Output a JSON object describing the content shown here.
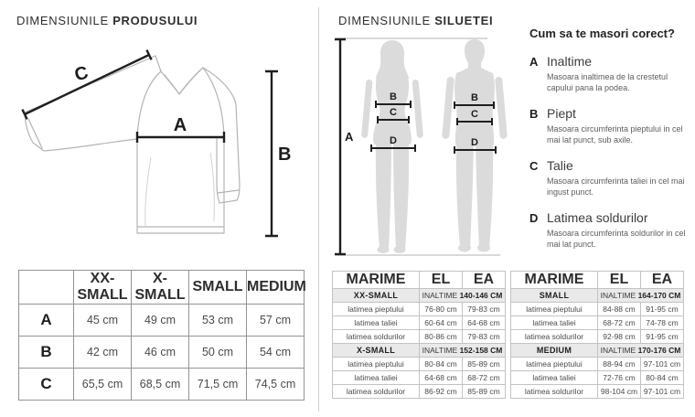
{
  "left": {
    "title_regular": "DIMENSIUNILE",
    "title_bold": "PRODUSULUI",
    "diagram": {
      "letters": {
        "a": "A",
        "b": "B",
        "c": "C"
      }
    },
    "table": {
      "headers": [
        "",
        "XX-SMALL",
        "X-SMALL",
        "SMALL",
        "MEDIUM"
      ],
      "rows": [
        {
          "label": "A",
          "values": [
            "45 cm",
            "49 cm",
            "53 cm",
            "57 cm"
          ]
        },
        {
          "label": "B",
          "values": [
            "42 cm",
            "46 cm",
            "50 cm",
            "54 cm"
          ]
        },
        {
          "label": "C",
          "values": [
            "65,5 cm",
            "68,5 cm",
            "71,5 cm",
            "74,5 cm"
          ]
        }
      ]
    }
  },
  "right": {
    "title_regular": "DIMENSIUNILE",
    "title_bold": "SILUETEI",
    "diagram": {
      "letters": {
        "a": "A",
        "b": "B",
        "c": "C",
        "d": "D"
      }
    },
    "howto": {
      "heading": "Cum sa te masori corect?",
      "items": [
        {
          "letter": "A",
          "term": "Inaltime",
          "desc": "Masoara inaltimea de la crestetul capului pana la podea."
        },
        {
          "letter": "B",
          "term": "Piept",
          "desc": "Masoara circumferinta pieptului in cel mai lat punct, sub axile."
        },
        {
          "letter": "C",
          "term": "Talie",
          "desc": "Masoara circumferinta taliei in cel mai ingust punct."
        },
        {
          "letter": "D",
          "term": "Latimea soldurilor",
          "desc": "Masoara circumferinta soldurilor in cel mai lat punct."
        }
      ]
    },
    "size_tables": [
      {
        "headers": [
          "MARIME",
          "EL",
          "EA"
        ],
        "groups": [
          {
            "size": "XX-SMALL",
            "height_label": "INALTIME",
            "height_range": "140-146 CM",
            "rows": [
              [
                "latimea pieptului",
                "76-80 cm",
                "79-83 cm"
              ],
              [
                "latimea taliei",
                "60-64 cm",
                "64-68 cm"
              ],
              [
                "latimea soldurilor",
                "80-86 cm",
                "79-83 cm"
              ]
            ]
          },
          {
            "size": "X-SMALL",
            "height_label": "INALTIME",
            "height_range": "152-158 CM",
            "rows": [
              [
                "latimea pieptului",
                "80-84 cm",
                "85-89 cm"
              ],
              [
                "latimea taliei",
                "64-68 cm",
                "68-72 cm"
              ],
              [
                "latimea soldurilor",
                "86-92 cm",
                "85-89 cm"
              ]
            ]
          }
        ]
      },
      {
        "headers": [
          "MARIME",
          "EL",
          "EA"
        ],
        "groups": [
          {
            "size": "SMALL",
            "height_label": "INALTIME",
            "height_range": "164-170 CM",
            "rows": [
              [
                "latimea pieptului",
                "84-88 cm",
                "91-95 cm"
              ],
              [
                "latimea taliei",
                "68-72 cm",
                "74-78 cm"
              ],
              [
                "latimea soldurilor",
                "92-98 cm",
                "91-95 cm"
              ]
            ]
          },
          {
            "size": "MEDIUM",
            "height_label": "INALTIME",
            "height_range": "170-176 CM",
            "rows": [
              [
                "latimea pieptului",
                "88-94 cm",
                "97-101 cm"
              ],
              [
                "latimea taliei",
                "72-76 cm",
                "80-84 cm"
              ],
              [
                "latimea soldurilor",
                "98-104 cm",
                "97-101 cm"
              ]
            ]
          }
        ]
      }
    ]
  },
  "colors": {
    "highlight_row": "#e9e9e9",
    "silhouette": "#dbdbdb",
    "measure_line": "#1f1f1f",
    "border": "#c3c3c3",
    "divider": "#cfcfcf"
  }
}
